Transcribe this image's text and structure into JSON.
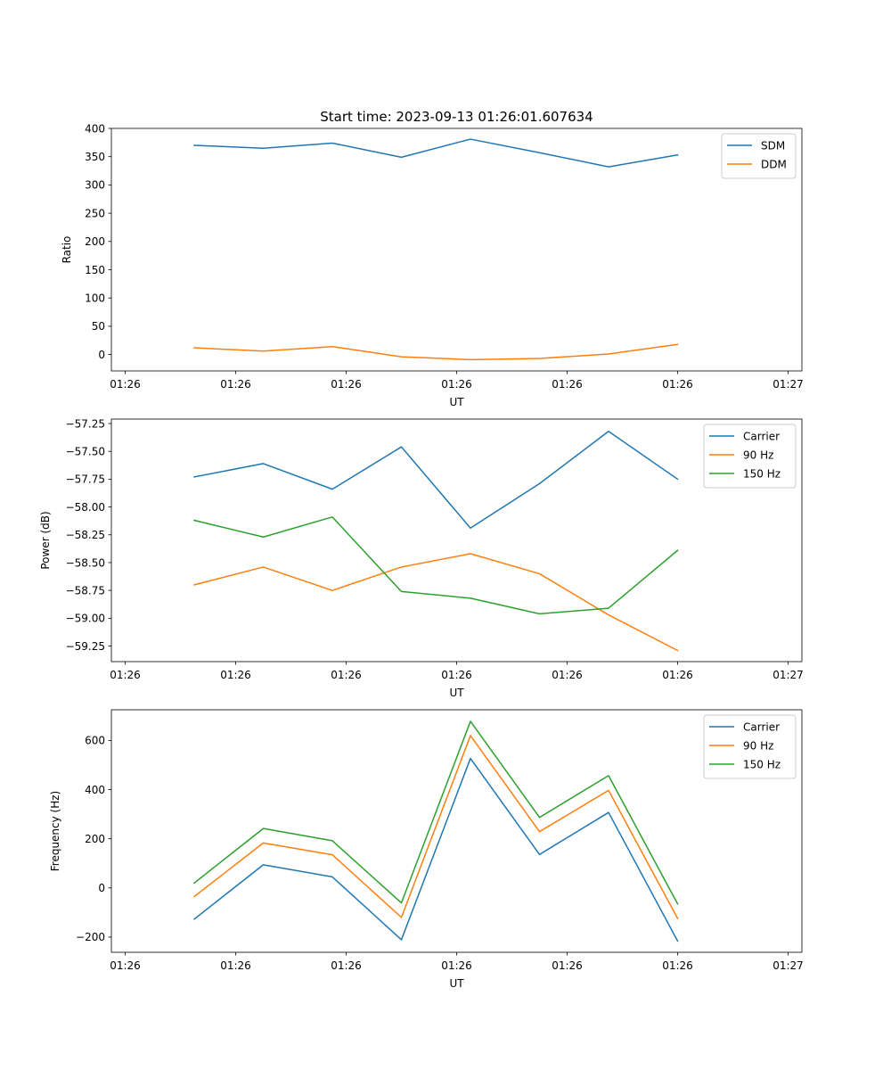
{
  "figure_title": "Start time: 2023-09-13 01:26:01.607634",
  "colors": {
    "blue": "#1f77b4",
    "orange": "#ff7f0e",
    "green": "#2ca02c"
  },
  "chart_data": [
    {
      "type": "line",
      "title": "Start time: 2023-09-13 01:26:01.607634",
      "xlabel": "UT",
      "ylabel": "Ratio",
      "x": [
        0.5,
        1.0,
        1.5,
        2.0,
        2.5,
        3.0,
        3.5,
        4.0
      ],
      "xlim": [
        -0.1,
        4.9
      ],
      "xticks": [
        0,
        0.8,
        1.6,
        2.4,
        3.2,
        4.0,
        4.8
      ],
      "xtick_labels": [
        "01:26",
        "01:26",
        "01:26",
        "01:26",
        "01:26",
        "01:26",
        "01:27"
      ],
      "ylim": [
        -29,
        400
      ],
      "yticks": [
        0,
        50,
        100,
        150,
        200,
        250,
        300,
        350,
        400
      ],
      "ytick_labels": [
        "0",
        "50",
        "100",
        "150",
        "200",
        "250",
        "300",
        "350",
        "400"
      ],
      "legend": "top-right",
      "series": [
        {
          "name": "SDM",
          "color": "#1f77b4",
          "values": [
            370,
            365,
            374,
            349,
            381,
            357,
            332,
            353
          ]
        },
        {
          "name": "DDM",
          "color": "#ff7f0e",
          "values": [
            12,
            6,
            14,
            -4,
            -9,
            -7,
            1,
            18
          ]
        }
      ]
    },
    {
      "type": "line",
      "title": "",
      "xlabel": "UT",
      "ylabel": "Power (dB)",
      "x": [
        0.5,
        1.0,
        1.5,
        2.0,
        2.5,
        3.0,
        3.5,
        4.0
      ],
      "xlim": [
        -0.1,
        4.9
      ],
      "xticks": [
        0,
        0.8,
        1.6,
        2.4,
        3.2,
        4.0,
        4.8
      ],
      "xtick_labels": [
        "01:26",
        "01:26",
        "01:26",
        "01:26",
        "01:26",
        "01:26",
        "01:27"
      ],
      "ylim": [
        -59.39,
        -57.21
      ],
      "yticks": [
        -57.25,
        -57.5,
        -57.75,
        -58.0,
        -58.25,
        -58.5,
        -58.75,
        -59.0,
        -59.25
      ],
      "ytick_labels": [
        "−57.25",
        "−57.50",
        "−57.75",
        "−58.00",
        "−58.25",
        "−58.50",
        "−58.75",
        "−59.00",
        "−59.25"
      ],
      "legend": "top-right",
      "series": [
        {
          "name": "Carrier",
          "color": "#1f77b4",
          "values": [
            -57.73,
            -57.61,
            -57.84,
            -57.46,
            -58.19,
            -57.79,
            -57.32,
            -57.75
          ]
        },
        {
          "name": "90 Hz",
          "color": "#ff7f0e",
          "values": [
            -58.7,
            -58.54,
            -58.75,
            -58.54,
            -58.42,
            -58.6,
            -58.97,
            -59.29
          ]
        },
        {
          "name": "150 Hz",
          "color": "#2ca02c",
          "values": [
            -58.12,
            -58.27,
            -58.09,
            -58.76,
            -58.82,
            -58.96,
            -58.91,
            -58.39
          ]
        }
      ]
    },
    {
      "type": "line",
      "title": "",
      "xlabel": "UT",
      "ylabel": "Frequency (Hz)",
      "x": [
        0.5,
        1.0,
        1.5,
        2.0,
        2.5,
        3.0,
        3.5,
        4.0
      ],
      "xlim": [
        -0.1,
        4.9
      ],
      "xticks": [
        0,
        0.8,
        1.6,
        2.4,
        3.2,
        4.0,
        4.8
      ],
      "xtick_labels": [
        "01:26",
        "01:26",
        "01:26",
        "01:26",
        "01:26",
        "01:26",
        "01:27"
      ],
      "ylim": [
        -262,
        725
      ],
      "yticks": [
        -200,
        0,
        200,
        400,
        600
      ],
      "ytick_labels": [
        "−200",
        "0",
        "200",
        "400",
        "600"
      ],
      "legend": "top-right",
      "series": [
        {
          "name": "Carrier",
          "color": "#1f77b4",
          "values": [
            -127,
            94,
            45,
            -211,
            527,
            136,
            307,
            -216
          ]
        },
        {
          "name": "90 Hz",
          "color": "#ff7f0e",
          "values": [
            -35,
            183,
            135,
            -120,
            620,
            229,
            397,
            -124
          ]
        },
        {
          "name": "150 Hz",
          "color": "#2ca02c",
          "values": [
            20,
            242,
            192,
            -61,
            678,
            287,
            457,
            -65
          ]
        }
      ]
    }
  ]
}
